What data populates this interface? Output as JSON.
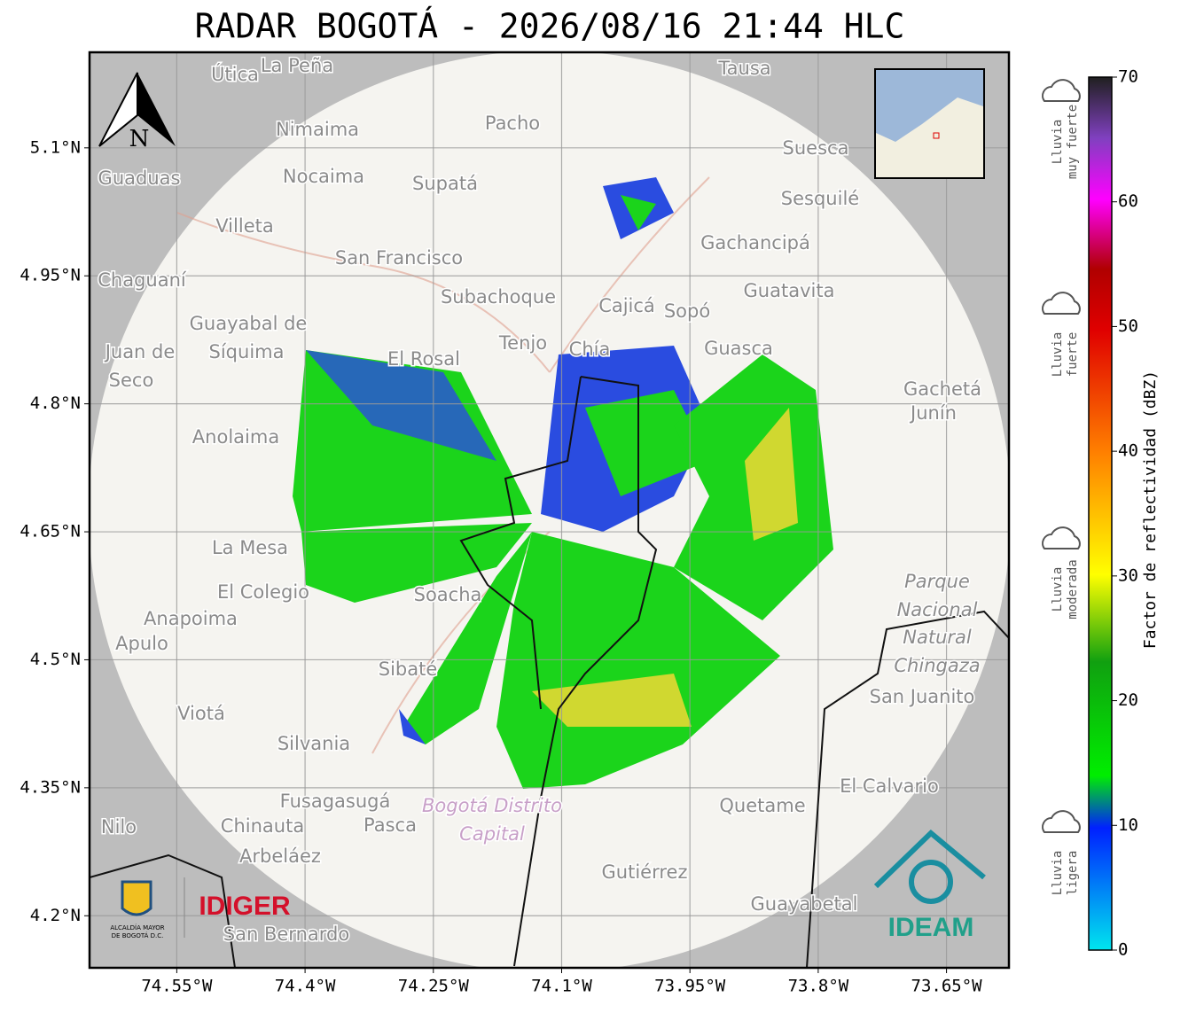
{
  "header": {
    "title": "RADAR BOGOTÁ - 2026/08/16 21:44 HLC"
  },
  "map": {
    "xlim": [
      -74.652,
      -73.577
    ],
    "ylim": [
      4.139,
      5.212
    ],
    "xticks": [
      {
        "value": -74.55,
        "label": "74.55°W"
      },
      {
        "value": -74.4,
        "label": "74.4°W"
      },
      {
        "value": -74.25,
        "label": "74.25°W"
      },
      {
        "value": -74.1,
        "label": "74.1°W"
      },
      {
        "value": -73.95,
        "label": "73.95°W"
      },
      {
        "value": -73.8,
        "label": "73.8°W"
      },
      {
        "value": -73.65,
        "label": "73.65°W"
      }
    ],
    "yticks": [
      {
        "value": 5.1,
        "label": "5.1°N"
      },
      {
        "value": 4.95,
        "label": "4.95°N"
      },
      {
        "value": 4.8,
        "label": "4.8°N"
      },
      {
        "value": 4.65,
        "label": "4.65°N"
      },
      {
        "value": 4.5,
        "label": "4.5°N"
      },
      {
        "value": 4.35,
        "label": "4.35°N"
      },
      {
        "value": 4.2,
        "label": "4.2°N"
      }
    ],
    "places": [
      "Útica",
      "La Peña",
      "Tausa",
      "Nimaima",
      "Pacho",
      "Guaduas",
      "Nocaima",
      "Supatá",
      "Suesca",
      "Sesquilé",
      "Villeta",
      "Gachancipá",
      "San Francisco",
      "Chaguaní",
      "Subachoque",
      "Guatavita",
      "Guayabal de",
      "Síquima",
      "Juan de",
      "Seco",
      "Cajicá",
      "Sopó",
      "Tenjo",
      "Chía",
      "El Rosal",
      "Guasca",
      "Gachetá",
      "Junín",
      "Anolaima",
      "La Mesa",
      "El Colegio",
      "Anapoima",
      "Apulo",
      "Soacha",
      "Sibaté",
      "Parque",
      "Nacional",
      "Natural",
      "Chingaza",
      "San Juanito",
      "Viotá",
      "Silvania",
      "El Calvario",
      "Fusagasugá",
      "Quetame",
      "Chinauta",
      "Pasca",
      "Nilo",
      "Bogotá Distrito",
      "Capital",
      "Arbeláez",
      "Gutiérrez",
      "Guayabetal",
      "San Bernardo"
    ],
    "north": "N",
    "logos": {
      "idiger": "IDIGER",
      "ideam": "IDEAM",
      "alcaldia_1": "ALCALDÍA MAYOR",
      "alcaldia_2": "DE BOGOTÁ D.C."
    }
  },
  "colorbar": {
    "label": "Factor de reflectividad (dBZ)",
    "lim": [
      0,
      70
    ],
    "ticks": [
      0,
      10,
      20,
      30,
      40,
      50,
      60,
      70
    ],
    "legend": [
      [
        "Lluvia",
        "muy fuerte"
      ],
      [
        "Lluvia",
        "fuerte"
      ],
      [
        "Lluvia",
        "moderada"
      ],
      [
        "Lluvia",
        "ligera"
      ]
    ]
  }
}
